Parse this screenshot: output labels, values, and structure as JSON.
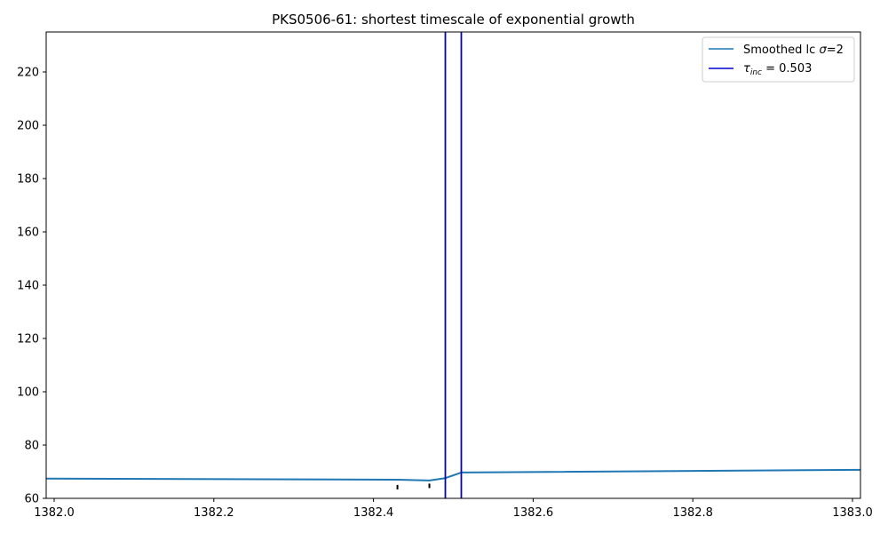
{
  "chart_data": {
    "type": "line",
    "title": "PKS0506-61: shortest timescale of exponential growth",
    "xlabel": "",
    "ylabel": "",
    "xlim": [
      1381.99,
      1383.01
    ],
    "ylim": [
      60,
      235
    ],
    "xticks": [
      1382.0,
      1382.2,
      1382.4,
      1382.6,
      1382.8,
      1383.0
    ],
    "xtick_labels": [
      "1382.0",
      "1382.2",
      "1382.4",
      "1382.6",
      "1382.8",
      "1383.0"
    ],
    "yticks": [
      60,
      80,
      100,
      120,
      140,
      160,
      180,
      200,
      220
    ],
    "ytick_labels": [
      "60",
      "80",
      "100",
      "120",
      "140",
      "160",
      "180",
      "200",
      "220"
    ],
    "grid": false,
    "legend_position": "top-right",
    "series": [
      {
        "name": "Smoothed lc σ=2",
        "color": "#1f77b4",
        "x": [
          1381.99,
          1382.43,
          1382.47,
          1382.49,
          1382.51,
          1383.01
        ],
        "y": [
          67.4,
          67.0,
          66.7,
          67.6,
          69.7,
          70.7
        ]
      }
    ],
    "vlines": {
      "name": "τinc = 0.503",
      "color": "#0000cd",
      "x": [
        1382.49,
        1382.51
      ]
    },
    "markers": {
      "color": "#000000",
      "x": [
        1382.43,
        1382.47
      ],
      "y": [
        64.2,
        64.7
      ]
    },
    "legend": {
      "smoothed_label_prefix": "Smoothed lc ",
      "smoothed_label_sigma": "σ",
      "smoothed_label_suffix": "=2",
      "tau_label_symbol": "τ",
      "tau_label_subscript": "inc",
      "tau_label_suffix": " = 0.503"
    }
  }
}
